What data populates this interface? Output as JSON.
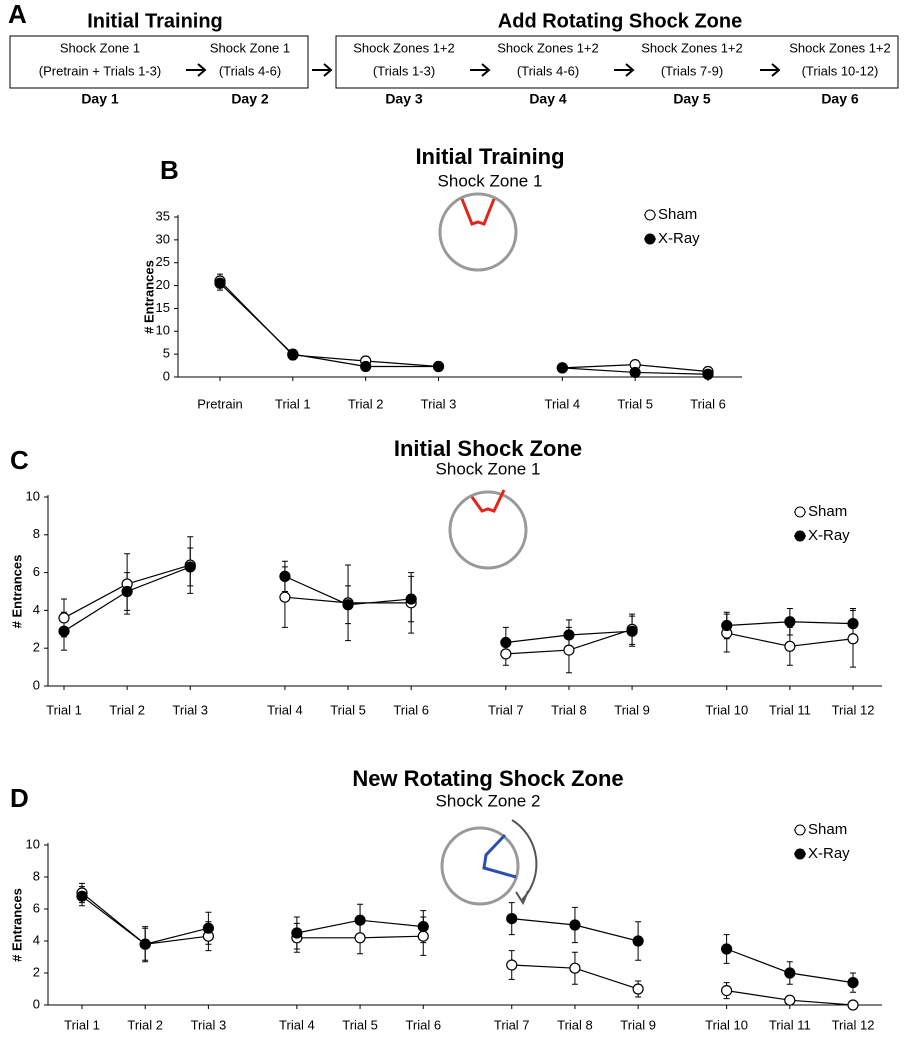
{
  "timeline": {
    "panel_label": "A",
    "groups": [
      {
        "title": "Initial Training"
      },
      {
        "title": "Add Rotating Shock Zone"
      }
    ],
    "days": [
      {
        "zone": "Shock Zone 1",
        "trials": "(Pretrain + Trials 1-3)",
        "day": "Day 1"
      },
      {
        "zone": "Shock Zone 1",
        "trials": "(Trials 4-6)",
        "day": "Day 2"
      },
      {
        "zone": "Shock Zones 1+2",
        "trials": "(Trials 1-3)",
        "day": "Day 3"
      },
      {
        "zone": "Shock Zones 1+2",
        "trials": "(Trials 4-6)",
        "day": "Day 4"
      },
      {
        "zone": "Shock Zones 1+2",
        "trials": "(Trials 7-9)",
        "day": "Day 5"
      },
      {
        "zone": "Shock Zones 1+2",
        "trials": "(Trials 10-12)",
        "day": "Day 6"
      }
    ]
  },
  "chart_data": [
    {
      "type": "line",
      "panel_label": "B",
      "title": "Initial Training",
      "subtitle": "Shock Zone 1",
      "y_label": "# Entrances",
      "categories": [
        "Pretrain",
        "Trial 1",
        "Trial 2",
        "Trial 3",
        null,
        "Trial 4",
        "Trial 5",
        "Trial 6"
      ],
      "series": [
        {
          "name": "Sham",
          "color": "#000000",
          "marker": "open",
          "values": [
            21,
            4.8,
            3.5,
            2.3,
            null,
            2.0,
            2.7,
            1.2
          ],
          "errors": [
            1.5,
            1,
            1,
            0.5,
            null,
            0.5,
            0.5,
            0.5
          ]
        },
        {
          "name": "X-Ray",
          "color": "#000000",
          "marker": "filled",
          "values": [
            20.5,
            5.0,
            2.3,
            2.3,
            null,
            2.0,
            1.0,
            0.6
          ],
          "errors": [
            1.5,
            1,
            0.5,
            0.5,
            null,
            0.5,
            0.3,
            0.3
          ]
        }
      ],
      "ylim": [
        0,
        35
      ],
      "yticks": [
        0,
        5,
        10,
        15,
        20,
        25,
        30,
        35
      ],
      "legend": "upper right"
    },
    {
      "type": "line",
      "panel_label": "C",
      "title": "Initial Shock Zone",
      "subtitle": "Shock Zone 1",
      "y_label": "# Entrances",
      "categories": [
        "Trial 1",
        "Trial 2",
        "Trial 3",
        null,
        "Trial 4",
        "Trial 5",
        "Trial 6",
        null,
        "Trial 7",
        "Trial 8",
        "Trial 9",
        null,
        "Trial 10",
        "Trial 11",
        "Trial 12"
      ],
      "series": [
        {
          "name": "Sham",
          "color": "#000000",
          "marker": "open",
          "values": [
            3.6,
            5.4,
            6.4,
            null,
            4.7,
            4.4,
            4.4,
            null,
            1.7,
            1.9,
            3.0,
            null,
            2.8,
            2.1,
            2.5
          ],
          "errors": [
            1,
            1.6,
            1.5,
            null,
            1.6,
            2,
            1.6,
            null,
            0.6,
            1.2,
            0.8,
            null,
            1,
            1,
            1.5
          ]
        },
        {
          "name": "X-Ray",
          "color": "#000000",
          "marker": "filled",
          "values": [
            2.9,
            5.0,
            6.3,
            null,
            5.8,
            4.3,
            4.6,
            null,
            2.3,
            2.7,
            2.9,
            null,
            3.2,
            3.4,
            3.3
          ],
          "errors": [
            1,
            1,
            1,
            null,
            0.8,
            1,
            1.2,
            null,
            0.8,
            0.8,
            0.8,
            null,
            0.7,
            0.7,
            0.8
          ]
        }
      ],
      "ylim": [
        0,
        10
      ],
      "yticks": [
        0,
        2,
        4,
        6,
        8,
        10
      ],
      "legend": "upper right"
    },
    {
      "type": "line",
      "panel_label": "D",
      "title": "New Rotating Shock Zone",
      "subtitle": "Shock Zone 2",
      "y_label": "# Entrances",
      "categories": [
        "Trial 1",
        "Trial 2",
        "Trial 3",
        null,
        "Trial 4",
        "Trial 5",
        "Trial 6",
        null,
        "Trial 7",
        "Trial 8",
        "Trial 9",
        null,
        "Trial 10",
        "Trial 11",
        "Trial 12"
      ],
      "series": [
        {
          "name": "Sham",
          "color": "#000000",
          "marker": "open",
          "values": [
            7.0,
            3.8,
            4.3,
            null,
            4.2,
            4.2,
            4.3,
            null,
            2.5,
            2.3,
            1.0,
            null,
            0.9,
            0.3,
            0.0
          ],
          "errors": [
            0.6,
            1,
            0.9,
            null,
            0.9,
            1,
            1.2,
            null,
            0.9,
            1,
            0.5,
            null,
            0.5,
            0.2,
            0.1
          ]
        },
        {
          "name": "X-Ray",
          "color": "#000000",
          "marker": "filled",
          "values": [
            6.8,
            3.8,
            4.8,
            null,
            4.5,
            5.3,
            4.9,
            null,
            5.4,
            5.0,
            4.0,
            null,
            3.5,
            2.0,
            1.4
          ],
          "errors": [
            0.6,
            1.1,
            1,
            null,
            1,
            1,
            1,
            null,
            1,
            1.1,
            1.2,
            null,
            0.9,
            0.7,
            0.6
          ]
        }
      ],
      "ylim": [
        0,
        10
      ],
      "yticks": [
        0,
        2,
        4,
        6,
        8,
        10
      ],
      "legend": "upper right"
    }
  ]
}
